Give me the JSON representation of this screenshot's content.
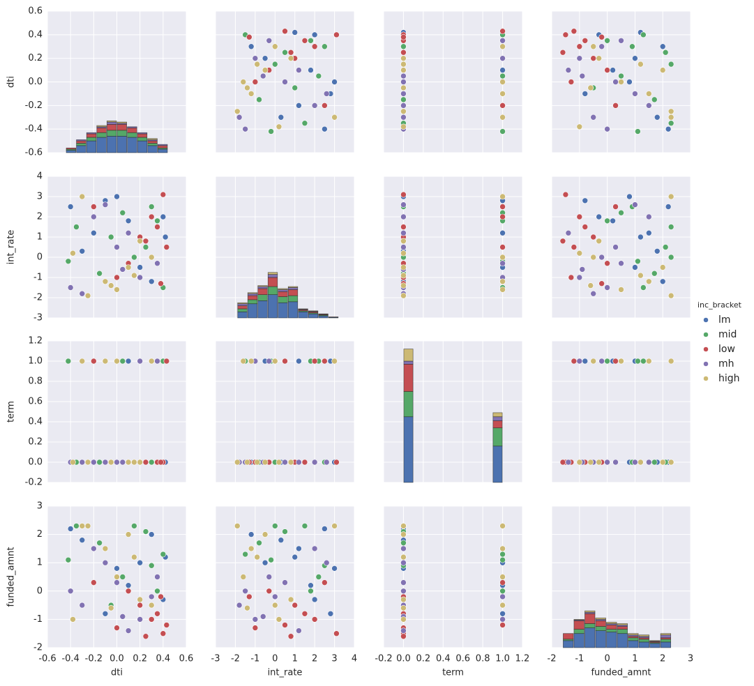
{
  "chart_data": {
    "type": "pairplot",
    "legend_title": "inc_bracket",
    "variables": [
      {
        "name": "dti",
        "lim": [
          -0.6,
          0.6
        ],
        "ticks": [
          -0.6,
          -0.4,
          -0.2,
          {
            "value": 0,
            "label": "0.0"
          },
          0.2,
          0.4,
          0.6
        ],
        "bins": [
          -0.44,
          -0.352,
          -0.264,
          -0.176,
          -0.088,
          0,
          0.088,
          0.176,
          0.264,
          0.352,
          0.44
        ],
        "hist": [
          [
            0.02,
            0.06,
            0.1,
            0.13,
            0.14,
            0.14,
            0.13,
            0.1,
            0.06,
            0.03
          ],
          [
            0.01,
            0.02,
            0.03,
            0.04,
            0.05,
            0.05,
            0.04,
            0.03,
            0.02,
            0.01
          ],
          [
            0.01,
            0.02,
            0.03,
            0.04,
            0.05,
            0.05,
            0.04,
            0.03,
            0.02,
            0.02
          ],
          [
            0,
            0.01,
            0.01,
            0.01,
            0.02,
            0.01,
            0.01,
            0.01,
            0.01,
            0.01
          ],
          [
            0,
            0,
            0,
            0.01,
            0.01,
            0.01,
            0,
            0,
            0.01,
            0
          ]
        ]
      },
      {
        "name": "int_rate",
        "lim": [
          -3,
          4
        ],
        "ticks": [
          -3,
          -2,
          -1,
          0,
          1,
          2,
          3,
          4
        ],
        "bins": [
          -1.9,
          -1.39,
          -0.88,
          -0.37,
          0.14,
          0.65,
          1.16,
          1.67,
          2.18,
          2.69,
          3.2
        ],
        "hist": [
          [
            0.3,
            0.7,
            0.85,
            1.15,
            0.75,
            0.8,
            0.3,
            0.2,
            0.1,
            0.03
          ],
          [
            0.15,
            0.2,
            0.3,
            0.4,
            0.3,
            0.3,
            0.05,
            0.05,
            0.04,
            0.01
          ],
          [
            0.15,
            0.2,
            0.3,
            0.45,
            0.25,
            0.3,
            0.05,
            0.05,
            0.03,
            0.01
          ],
          [
            0.1,
            0.1,
            0.1,
            0.15,
            0.1,
            0.1,
            0.03,
            0.03,
            0.02,
            0
          ],
          [
            0.05,
            0.05,
            0.05,
            0.1,
            0.05,
            0.05,
            0.02,
            0.02,
            0.01,
            0
          ]
        ]
      },
      {
        "name": "term",
        "lim": [
          -0.2,
          1.2
        ],
        "ticks": [
          -0.2,
          {
            "value": 0,
            "label": "0.0"
          },
          0.2,
          0.4,
          0.6,
          0.8,
          {
            "value": 1,
            "label": "1.0"
          },
          1.2
        ],
        "bins": [
          0,
          0.1,
          0.2,
          0.3,
          0.4,
          0.5,
          0.6,
          0.7,
          0.8,
          0.9,
          1
        ],
        "hist": [
          [
            0.65,
            0,
            0,
            0,
            0,
            0,
            0,
            0,
            0,
            0.36
          ],
          [
            0.25,
            0,
            0,
            0,
            0,
            0,
            0,
            0,
            0,
            0.18
          ],
          [
            0.27,
            0,
            0,
            0,
            0,
            0,
            0,
            0,
            0,
            0.07
          ],
          [
            0.03,
            0,
            0,
            0,
            0,
            0,
            0,
            0,
            0,
            0.04
          ],
          [
            0.12,
            0,
            0,
            0,
            0,
            0,
            0,
            0,
            0,
            0.04
          ]
        ]
      },
      {
        "name": "funded_amnt",
        "lim": [
          -2,
          3
        ],
        "ticks": [
          -2,
          -1,
          0,
          1,
          2,
          3
        ],
        "bins": [
          -1.6,
          -1.21,
          -0.82,
          -0.43,
          -0.04,
          0.35,
          0.74,
          1.13,
          1.52,
          1.91,
          2.3
        ],
        "hist": [
          [
            0.25,
            0.5,
            0.7,
            0.6,
            0.55,
            0.5,
            0.25,
            0.2,
            0.15,
            0.2
          ],
          [
            0.05,
            0.15,
            0.15,
            0.15,
            0.1,
            0.15,
            0.1,
            0.1,
            0.03,
            0.1
          ],
          [
            0.2,
            0.3,
            0.35,
            0.2,
            0.15,
            0.1,
            0.05,
            0.05,
            0.03,
            0.05
          ],
          [
            0,
            0.03,
            0.05,
            0.05,
            0.05,
            0.05,
            0.05,
            0.05,
            0.02,
            0.1
          ],
          [
            0,
            0.02,
            0.05,
            0.05,
            0.05,
            0.05,
            0.05,
            0.05,
            0.02,
            0.05
          ]
        ]
      }
    ],
    "series": [
      {
        "name": "lm",
        "color": "#4c72b0",
        "points": {
          "dti": [
            -0.4,
            -0.2,
            0,
            0.2,
            0.4,
            -0.3,
            0.1,
            0.3,
            -0.1,
            0.42
          ],
          "int_rate": [
            2.5,
            1.2,
            3.0,
            -0.5,
            2.0,
            0.3,
            1.8,
            -1.2,
            2.8,
            1.0
          ],
          "term": [
            0,
            1,
            0,
            1,
            0,
            0,
            1,
            0,
            1,
            0
          ],
          "funded_amnt": [
            2.2,
            1.5,
            0.8,
            1.0,
            -0.3,
            1.8,
            0.2,
            2.0,
            -0.8,
            1.2
          ]
        }
      },
      {
        "name": "mid",
        "color": "#55a868",
        "points": {
          "dti": [
            -0.35,
            -0.15,
            0.05,
            0.25,
            0.4,
            -0.05,
            0.3,
            -0.42,
            0.15,
            0.35
          ],
          "int_rate": [
            1.5,
            -0.8,
            2.2,
            0.5,
            -1.5,
            1.0,
            2.5,
            -0.2,
            0.0,
            1.8
          ],
          "term": [
            0,
            0,
            1,
            0,
            1,
            0,
            0,
            1,
            0,
            1
          ],
          "funded_amnt": [
            2.3,
            1.7,
            0.5,
            2.1,
            1.3,
            -0.5,
            0.9,
            1.1,
            2.3,
            0.0
          ]
        }
      },
      {
        "name": "low",
        "color": "#c44e52",
        "points": {
          "dti": [
            0.4,
            0.3,
            0.2,
            0.1,
            0.43,
            0.35,
            0.0,
            -0.2,
            0.25,
            0.38
          ],
          "int_rate": [
            3.1,
            2.0,
            1.0,
            -0.3,
            0.5,
            1.5,
            -1.0,
            2.5,
            0.8,
            -1.3
          ],
          "term": [
            0,
            1,
            0,
            0,
            1,
            0,
            0,
            1,
            0,
            0
          ],
          "funded_amnt": [
            -1.5,
            -1.0,
            -0.5,
            0.0,
            -1.2,
            -0.8,
            -1.3,
            0.3,
            -1.6,
            -0.2
          ]
        }
      },
      {
        "name": "mh",
        "color": "#8172b2",
        "points": {
          "dti": [
            -0.3,
            0.0,
            0.2,
            -0.1,
            0.35,
            0.1,
            -0.4,
            0.3,
            -0.2,
            0.05
          ],
          "int_rate": [
            -1.8,
            0.5,
            -1.0,
            2.6,
            -0.3,
            1.2,
            -1.5,
            0.0,
            2.0,
            -0.6
          ],
          "term": [
            0,
            0,
            1,
            0,
            1,
            0,
            0,
            1,
            0,
            0
          ],
          "funded_amnt": [
            -0.5,
            0.3,
            -1.0,
            1.0,
            0.5,
            -1.4,
            0.0,
            -0.2,
            1.5,
            -0.9
          ]
        }
      },
      {
        "name": "high",
        "color": "#ccb974",
        "points": {
          "dti": [
            -0.25,
            -0.1,
            0.1,
            -0.38,
            0.0,
            0.2,
            -0.3,
            0.15,
            -0.05,
            0.3
          ],
          "int_rate": [
            -1.9,
            -1.2,
            -0.5,
            0.2,
            -1.6,
            0.8,
            3.0,
            -0.9,
            -1.4,
            0.0
          ],
          "term": [
            0,
            1,
            0,
            0,
            1,
            0,
            1,
            0,
            0,
            1
          ],
          "funded_amnt": [
            2.3,
            1.5,
            2.0,
            -1.0,
            0.5,
            -0.3,
            2.3,
            1.2,
            -0.6,
            -0.5
          ]
        }
      }
    ]
  }
}
